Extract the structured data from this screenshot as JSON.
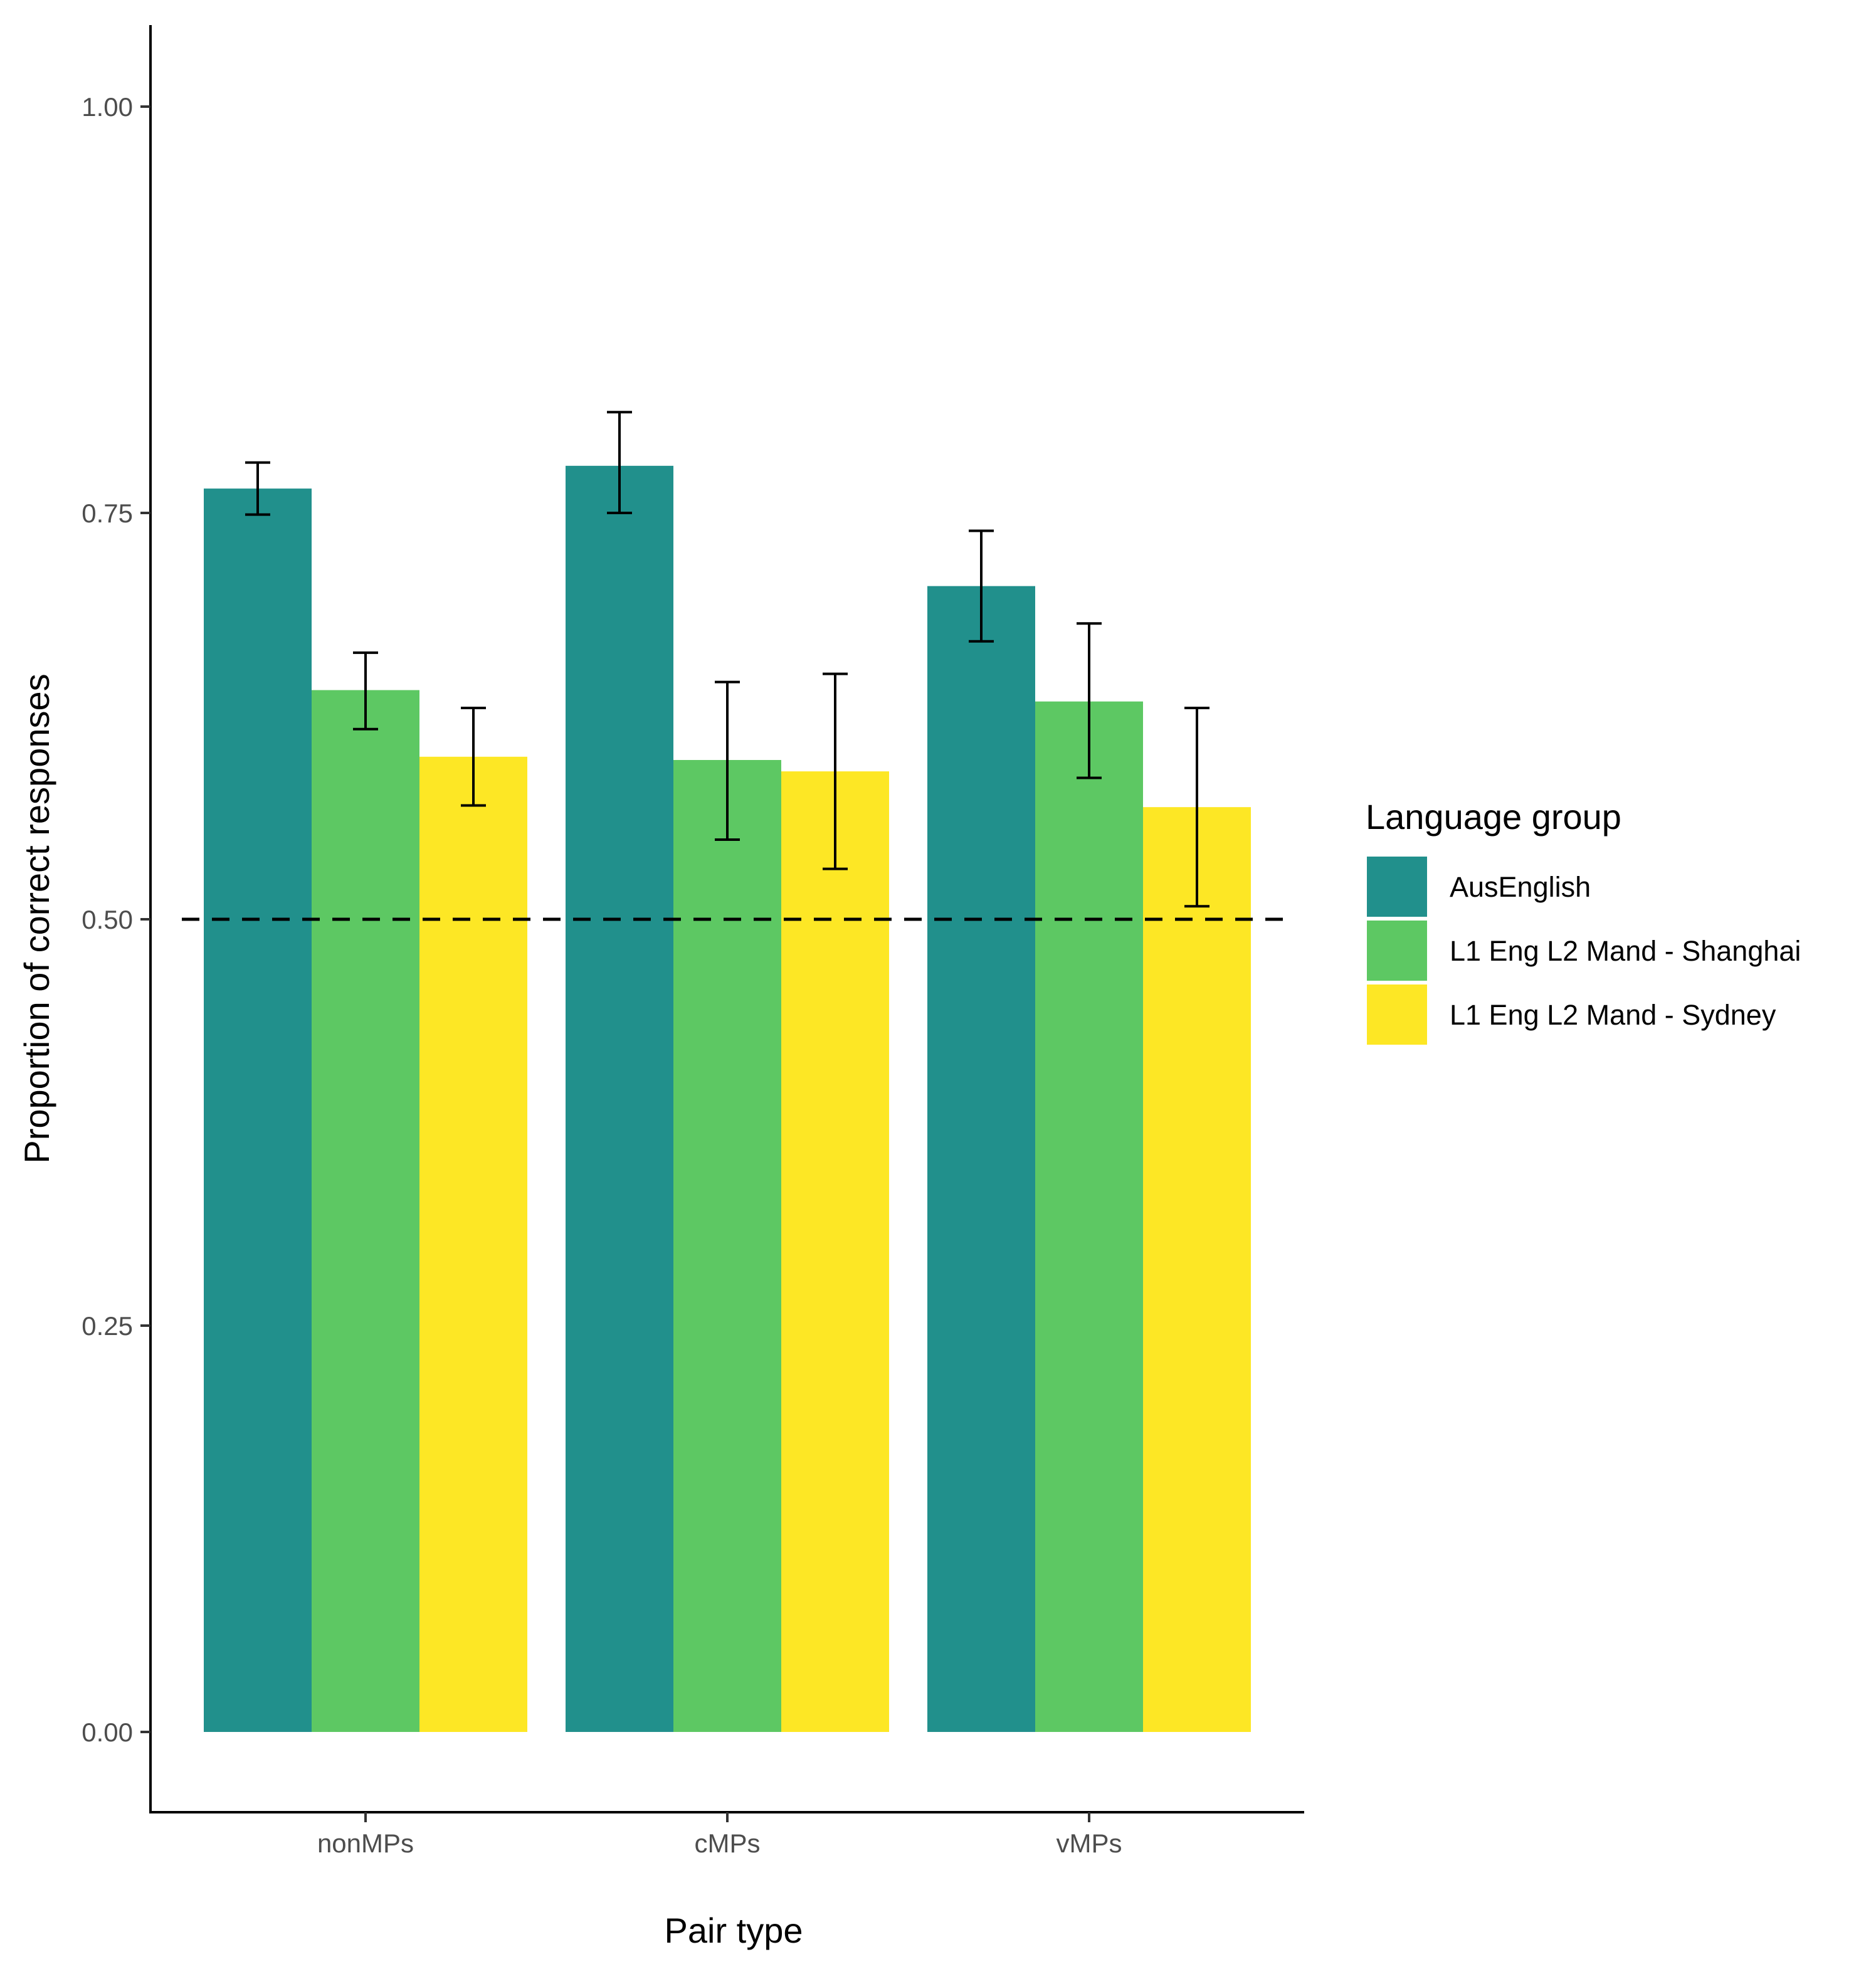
{
  "chart_data": {
    "type": "bar",
    "title": "",
    "xlabel": "Pair type",
    "ylabel": "Proportion of correct responses",
    "categories": [
      "nonMPs",
      "cMPs",
      "vMPs"
    ],
    "ylim": [
      -0.05,
      1.05
    ],
    "yticks": [
      0.0,
      0.25,
      0.5,
      0.75,
      1.0
    ],
    "ytick_labels": [
      "0.00",
      "0.25",
      "0.50",
      "0.75",
      "1.00"
    ],
    "reference_line": {
      "value": 0.5,
      "style": "dashed",
      "color": "#000000"
    },
    "legend": {
      "title": "Language group",
      "placement": "right"
    },
    "series": [
      {
        "name": "AusEnglish",
        "color": "#21908C",
        "values": [
          0.765,
          0.779,
          0.705
        ],
        "error_low": [
          0.749,
          0.75,
          0.671
        ],
        "error_high": [
          0.781,
          0.812,
          0.739
        ]
      },
      {
        "name": "L1 Eng L2 Mand - Shanghai",
        "color": "#5DC863",
        "values": [
          0.641,
          0.598,
          0.634
        ],
        "error_low": [
          0.617,
          0.549,
          0.587
        ],
        "error_high": [
          0.664,
          0.646,
          0.682
        ]
      },
      {
        "name": "L1 Eng L2 Mand - Sydney",
        "color": "#FDE725",
        "values": [
          0.6,
          0.591,
          0.569
        ],
        "error_low": [
          0.57,
          0.531,
          0.508
        ],
        "error_high": [
          0.63,
          0.651,
          0.63
        ]
      }
    ]
  }
}
